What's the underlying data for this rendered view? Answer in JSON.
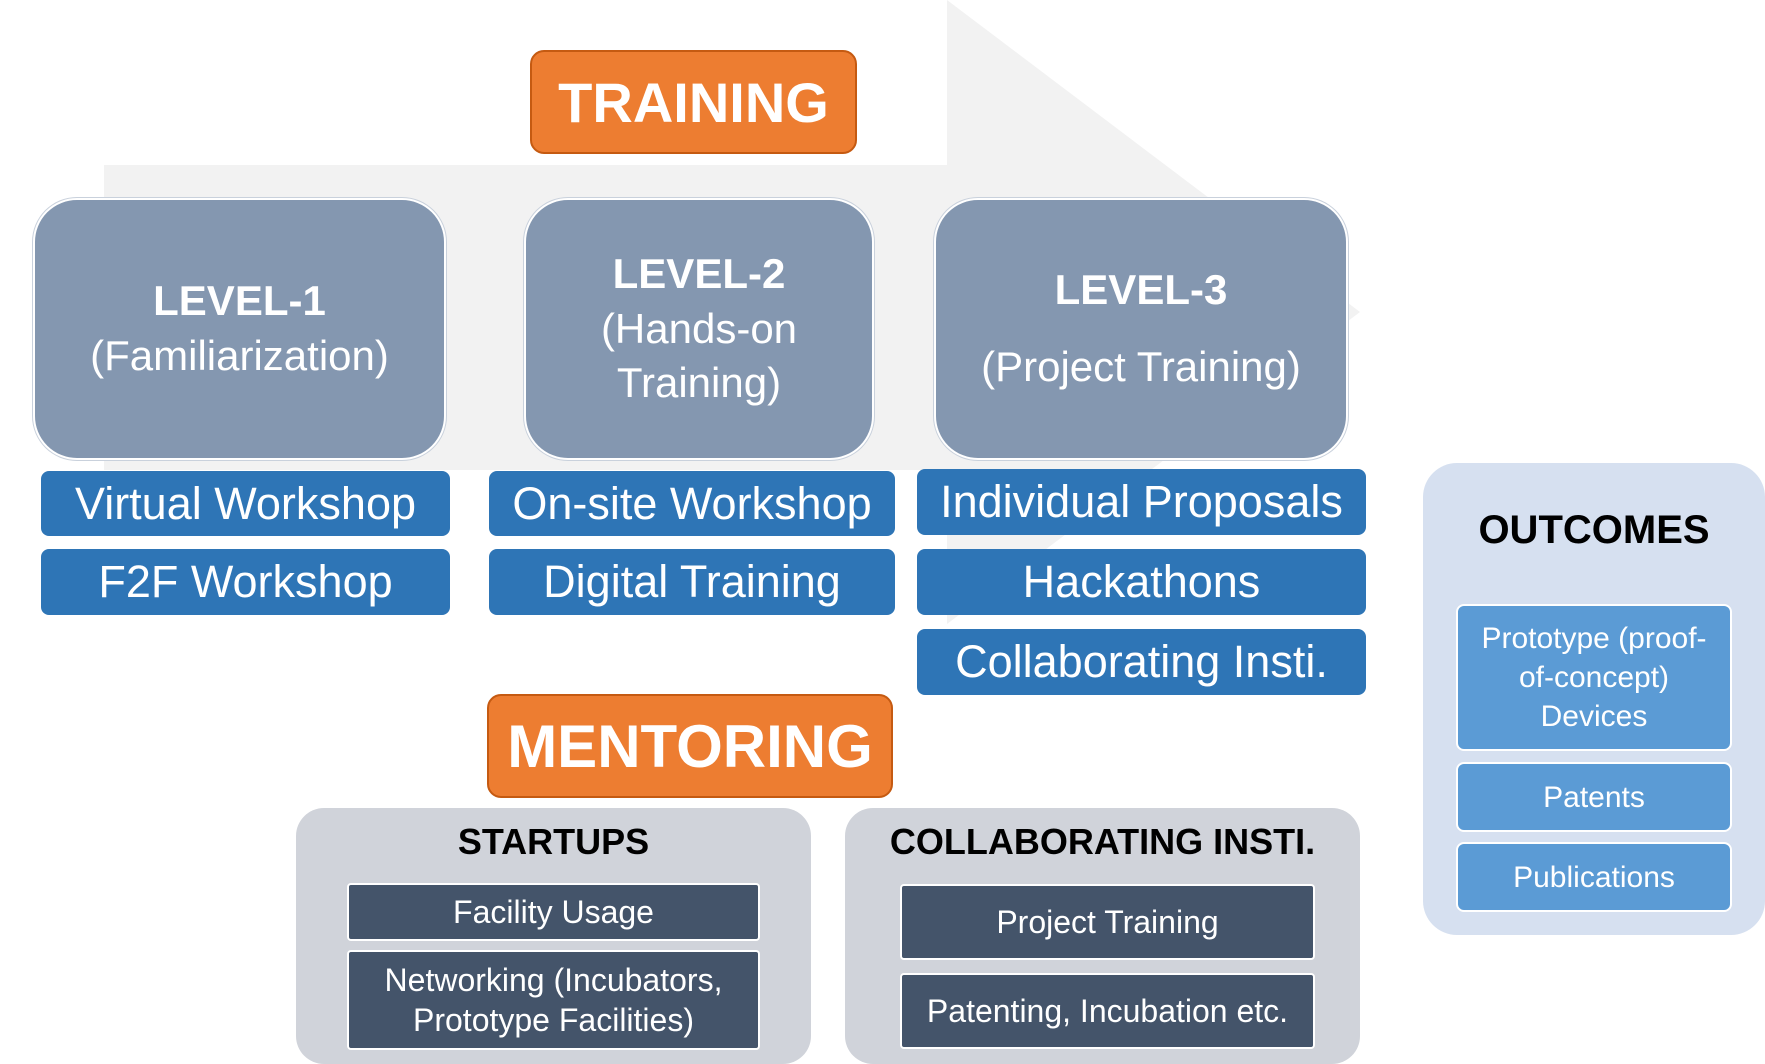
{
  "training": {
    "label": "TRAINING"
  },
  "mentoring": {
    "label": "MENTORING"
  },
  "levels": [
    {
      "title": "LEVEL-1",
      "subtitle": "(Familiarization)"
    },
    {
      "title": "LEVEL-2",
      "subtitle": "(Hands-on Training)"
    },
    {
      "title": "LEVEL-3",
      "subtitle": "(Project Training)"
    }
  ],
  "level_items": [
    [
      "Virtual Workshop",
      "F2F Workshop"
    ],
    [
      "On-site Workshop",
      "Digital Training"
    ],
    [
      "Individual Proposals",
      "Hackathons",
      "Collaborating Insti."
    ]
  ],
  "startups": {
    "title": "STARTUPS",
    "items": [
      "Facility Usage",
      "Networking (Incubators, Prototype Facilities)"
    ]
  },
  "collab": {
    "title": "COLLABORATING INSTI.",
    "items": [
      "Project Training",
      "Patenting, Incubation etc."
    ]
  },
  "outcomes": {
    "title": "OUTCOMES",
    "items": [
      "Prototype (proof-of-concept) Devices",
      "Patents",
      "Publications"
    ]
  },
  "colors": {
    "orange": "#ED7D31",
    "level_box": "#8497B0",
    "blue_bar": "#2E75B6",
    "dark_bar": "#44546A",
    "outcome_item": "#5B9BD5",
    "arrow": "#F2F2F2"
  }
}
